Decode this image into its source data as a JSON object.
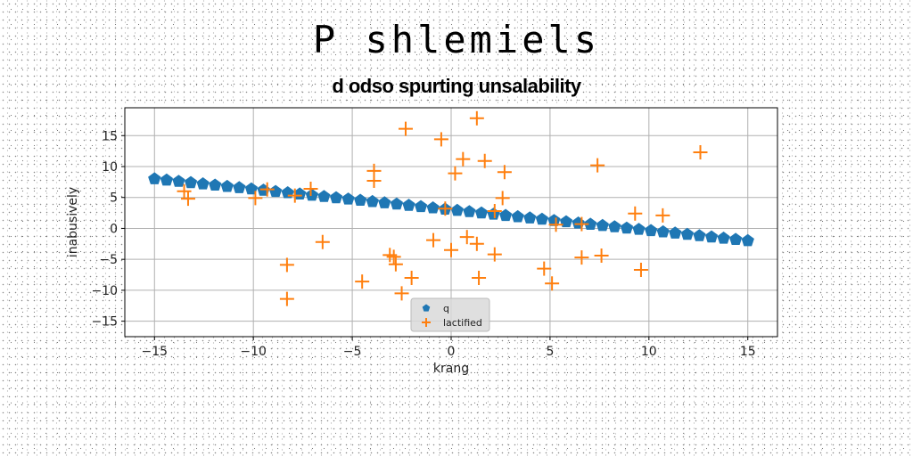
{
  "chart_data": {
    "type": "scatter",
    "title": "P shlemiels",
    "subtitle": "d odso spurting unsalability",
    "xlabel": "krang",
    "ylabel": "inabusively",
    "xlim": [
      -16.5,
      16.5
    ],
    "ylim": [
      -17.5,
      19.5
    ],
    "xticks": [
      -15,
      -10,
      -5,
      0,
      5,
      10,
      15
    ],
    "yticks": [
      -15,
      -10,
      -5,
      0,
      5,
      10,
      15
    ],
    "xtick_labels": [
      "−15",
      "−10",
      "−5",
      "0",
      "5",
      "10",
      "15"
    ],
    "ytick_labels": [
      "−15",
      "−10",
      "−5",
      "0",
      "5",
      "10",
      "15"
    ],
    "grid": true,
    "legend_position": "lower center",
    "series": [
      {
        "name": "q",
        "marker": "pentagon",
        "color": "#1f77b4",
        "x_start": -15,
        "x_end": 15,
        "count": 50,
        "y_start": 8.0,
        "y_end": -2.0
      },
      {
        "name": "lactified",
        "marker": "plus",
        "color": "#ff7f0e",
        "points": [
          [
            -13.5,
            6.0
          ],
          [
            -13.3,
            4.8
          ],
          [
            -9.9,
            4.9
          ],
          [
            -9.3,
            6.3
          ],
          [
            -8.3,
            -5.9
          ],
          [
            -8.3,
            -11.4
          ],
          [
            -7.9,
            5.3
          ],
          [
            -7.1,
            6.4
          ],
          [
            -6.5,
            -2.2
          ],
          [
            -4.5,
            -8.6
          ],
          [
            -3.9,
            9.3
          ],
          [
            -3.9,
            7.7
          ],
          [
            -3.1,
            -4.3
          ],
          [
            -2.9,
            -4.6
          ],
          [
            -2.8,
            -5.8
          ],
          [
            -2.5,
            -10.5
          ],
          [
            -2.3,
            16.1
          ],
          [
            -2.0,
            -8.0
          ],
          [
            -0.9,
            -1.9
          ],
          [
            -0.5,
            14.4
          ],
          [
            -0.3,
            3.2
          ],
          [
            0.0,
            -3.5
          ],
          [
            0.2,
            8.9
          ],
          [
            0.6,
            11.2
          ],
          [
            0.8,
            -1.4
          ],
          [
            1.3,
            17.8
          ],
          [
            1.3,
            -2.5
          ],
          [
            1.4,
            -8.0
          ],
          [
            1.7,
            10.9
          ],
          [
            2.2,
            -4.2
          ],
          [
            2.2,
            2.8
          ],
          [
            2.6,
            4.9
          ],
          [
            2.7,
            9.1
          ],
          [
            4.7,
            -6.5
          ],
          [
            5.1,
            -8.9
          ],
          [
            5.3,
            0.6
          ],
          [
            6.6,
            -4.7
          ],
          [
            6.6,
            0.7
          ],
          [
            7.4,
            10.2
          ],
          [
            7.6,
            -4.4
          ],
          [
            9.3,
            2.4
          ],
          [
            9.6,
            -6.7
          ],
          [
            10.7,
            2.1
          ],
          [
            12.6,
            12.3
          ]
        ]
      }
    ]
  }
}
